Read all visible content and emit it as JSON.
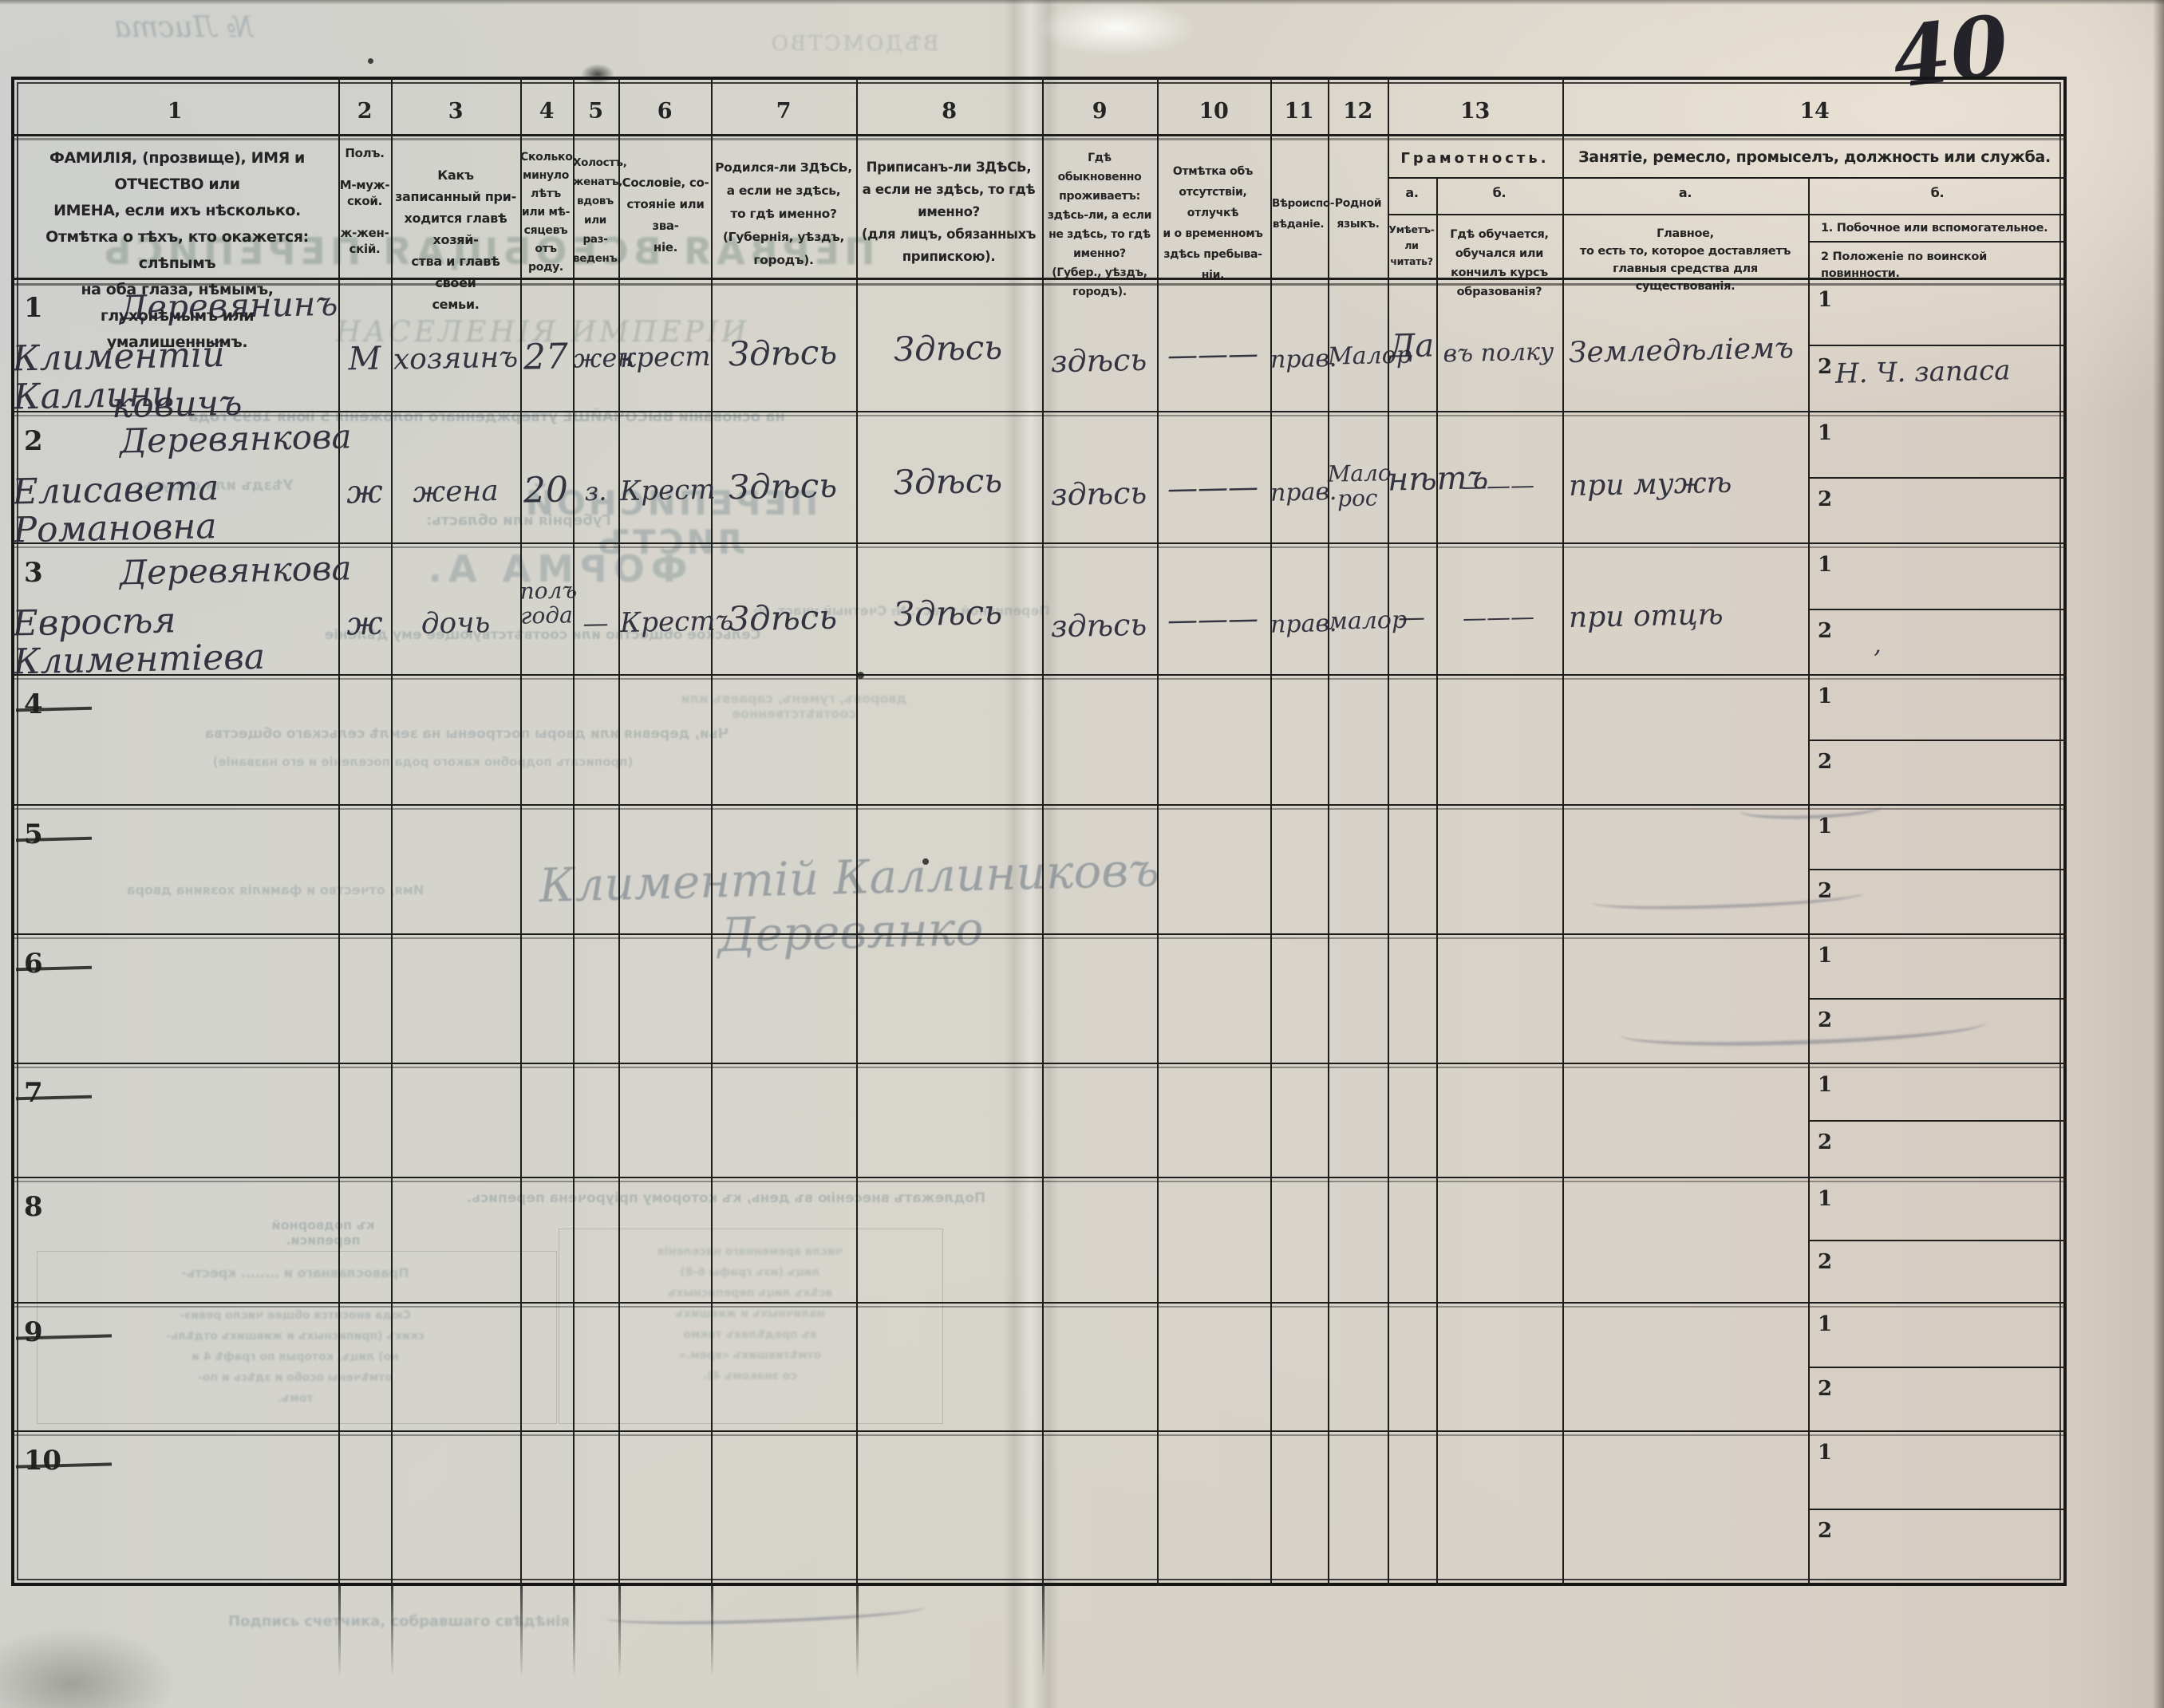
{
  "page": {
    "handwritten_page_number": "40",
    "comma_mark": ","
  },
  "bleedthrough": {
    "vedomstvo": "ВѢДОМСТВО",
    "list_no": "№ Листа",
    "title1": "ПЕРВАЯ ВСЕОБЩАЯ ПЕРЕПИСЬ",
    "title2": "НАСЕЛЕНІЯ ИМПЕРІИ",
    "law": "на основаніи ВЫСОЧАЙШЕ утвержденнаго положенія 5 іюня 1895 года",
    "uezd": "Уѣздъ или округъ:",
    "gub": "Губернія или область:",
    "list_title": "ПЕРЕПИСНОЙ ЛИСТЪ",
    "forma": "ФОРМА А.",
    "selskoe": "Сельское общество или соотвѣтствующее ему дѣленіе",
    "uchastok": "Переписной участ. №      Счетный участ. №",
    "para3": "дворовъ, гуменъ, сараевъ или соотвѣтственное",
    "para1": "Чьи, деревня или дворы построены на землѣ сельскаго общества",
    "para2": "(прописать подробно какого рода поселеніе и его названіе)",
    "owner_label": "Имя, отчество и фамилія хозяина двора",
    "owner_sig": "Климентій Каллиниковъ Деревянко",
    "header_note": "Подлежатъ внесенію въ день, къ которому пріурочена перепись.",
    "perepis_note": "къ подворной переписи.",
    "mini_head": "Православнаго и ........ кресть-",
    "mini_lines": "Сюда вносится общее число ревиз-\nскихъ (приписныхъ и жившихъ отдѣль-\nно) лицъ, которыя по графѣ 4 и\nотмѣчены особо и здѣсь и по-\nтомъ.",
    "mini_lines2": "числа временнаго населенія\nлицъ (изъ графы 6-8)\nвсѣхъ лицъ переписныхъ\nналичныхъ и жившихъ\nвъ предѣлахъ токмо\nотмѣтившихъ «врем.»\nсо знакомъ 4).",
    "signer": "Подпись счетчика, собравшаго свѣдѣнія"
  },
  "table": {
    "column_numbers": [
      "1",
      "2",
      "3",
      "4",
      "5",
      "6",
      "7",
      "8",
      "9",
      "10",
      "11",
      "12",
      "13",
      "14"
    ],
    "headers": {
      "col1": "ФАМИЛІЯ, (прозвище), ИМЯ и ОТЧЕСТВО или\nИМЕНА, если ихъ нѣсколько.\nОтмѣтка о тѣхъ, кто окажется: слѣпымъ\nна оба глаза, нѣмымъ, глухонѣмымъ или\nумалишеннымъ.",
      "col2": "Полъ.\n\nМ-муж-\nской.\n\nж-жен-\nскій.",
      "col3": "Какъ записанный при-\nходится главѣ хозяй-\nства и главѣ своей\nсемьи.",
      "col4": "Сколько\nминуло\nлѣтъ\nили мѣ-\nсяцевъ\nотъ роду.",
      "col5": "Холостъ,\nженатъ,\nвдовъ\nили раз-\nведенъ.",
      "col6": "Сословіе, со-\nстояніе или зва-\nніе.",
      "col7": "Родился-ли ЗДѢСЬ,\nа если не здѣсь,\nто гдѣ именно?\n(Губернія, уѣздъ, городъ).",
      "col8": "Приписанъ-ли ЗДѢСЬ,\nа если не здѣсь, то гдѣ\nименно?\n(для лицъ, обязанныхъ\nприпискою).",
      "col9": "Гдѣ обыкновенно\nпроживаетъ:\nздѣсь-ли, а если\nне здѣсь, то гдѣ\nименно?\n(Губер., уѣздъ, городъ).",
      "col10": "Отмѣтка объ\nотсутствіи, отлучкѣ\nи о временномъ\nздѣсь пребыва-\nніи.",
      "col11": "Вѣроиспо-\nвѣданіе.",
      "col12": "Родной\nязыкъ.",
      "col13_title": "Грамотность.",
      "col13_a_label": "а.",
      "col13_b_label": "б.",
      "col13_a": "Умѣетъ-\nли\nчитать?",
      "col13_b": "Гдѣ обучается,\nобучался или\nкончилъ курсъ\nобразованія?",
      "col14_title": "Занятіе, ремесло, промыселъ, должность или служба.",
      "col14_a_label": "а.",
      "col14_b_label": "б.",
      "col14_a": "Главное,\nто есть то, которое доставляетъ\nглавныя средства для существованія.",
      "col14_b1": "1.  Побочное или вспомогательное.",
      "col14_b2": "2  Положеніе по воинской повинности."
    },
    "sub_row_labels": {
      "first": "1",
      "second": "2"
    },
    "rows": [
      {
        "num": "1",
        "cells": {
          "c1a": "Деревянинъ",
          "c1b": "Климентій Каллини",
          "c1c": "ковичъ",
          "c2": "М",
          "c3": "хозяинъ",
          "c4": "27",
          "c5": "жен",
          "c6": "крест",
          "c7": "Здѣсь",
          "c8": "Здѣсь",
          "c9": "здѣсь",
          "c10": "———",
          "c11": "прав.",
          "c12": "Малор",
          "c13a": "Да",
          "c13b": "въ полку",
          "c14a": "Земледѣліемъ",
          "c14b2": "Н. Ч. запаса"
        }
      },
      {
        "num": "2",
        "cells": {
          "c1a": "Деревянкова",
          "c1b": "Елисавета Романовна",
          "c2": "ж",
          "c3": "жена",
          "c4": "20",
          "c5": "з.",
          "c6": "Крест",
          "c7": "Здѣсь",
          "c8": "Здѣсь",
          "c9": "здѣсь",
          "c10": "———",
          "c11": "прав.",
          "c12": "Мало\nрос",
          "c13a": "нѣтъ",
          "c13b": "———",
          "c14a": "при мужѣ"
        }
      },
      {
        "num": "3",
        "cells": {
          "c1a": "Деревянкова",
          "c1b": "Евросѣя Климентіева",
          "c2": "ж",
          "c3": "дочь",
          "c4": "полъ\nгода",
          "c5": "—",
          "c6": "Крестъ",
          "c7": "Здѣсь",
          "c8": "Здѣсь",
          "c9": "здѣсь",
          "c10": "———",
          "c11": "прав.",
          "c12": "малор",
          "c13a": "—",
          "c13b": "———",
          "c14a": "при отцѣ"
        }
      },
      {
        "num": "4",
        "cells": {}
      },
      {
        "num": "5",
        "cells": {}
      },
      {
        "num": "6",
        "cells": {}
      },
      {
        "num": "7",
        "cells": {}
      },
      {
        "num": "8",
        "cells": {}
      },
      {
        "num": "9",
        "cells": {}
      },
      {
        "num": "10",
        "cells": {}
      }
    ]
  }
}
